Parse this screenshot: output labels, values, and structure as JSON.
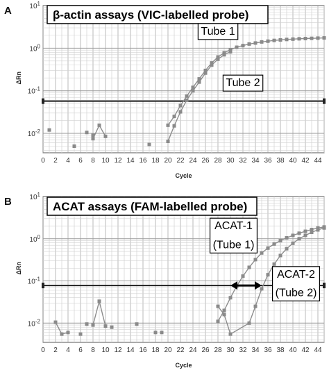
{
  "chart_data": [
    {
      "type": "scatter",
      "panel_label": "A",
      "title": "β-actin assays (VIC-labelled probe)",
      "xlabel": "Cycle",
      "ylabel": "ΔRn",
      "xlim": [
        0,
        45
      ],
      "ylim": [
        0.0035,
        10
      ],
      "yscale": "log",
      "xticks": [
        0,
        2,
        4,
        6,
        8,
        10,
        12,
        14,
        16,
        18,
        20,
        22,
        24,
        26,
        28,
        30,
        32,
        34,
        36,
        38,
        40,
        42,
        44
      ],
      "yticks": [
        {
          "value": 10,
          "label": "10^1"
        },
        {
          "value": 1,
          "label": "10^0"
        },
        {
          "value": 0.1,
          "label": "10^-1"
        },
        {
          "value": 0.01,
          "label": "10^-2"
        }
      ],
      "grid": true,
      "threshold": 0.057,
      "series": [
        {
          "name": "Tube 1",
          "points": [
            [
              20,
              0.0155
            ],
            [
              21,
              0.025
            ],
            [
              22,
              0.045
            ],
            [
              23,
              0.075
            ],
            [
              24,
              0.12
            ],
            [
              25,
              0.19
            ],
            [
              26,
              0.3
            ],
            [
              27,
              0.45
            ],
            [
              28,
              0.62
            ],
            [
              29,
              0.78
            ],
            [
              30,
              0.92
            ],
            [
              31,
              1.05
            ],
            [
              32,
              1.15
            ],
            [
              33,
              1.25
            ],
            [
              34,
              1.32
            ],
            [
              35,
              1.4
            ],
            [
              36,
              1.46
            ],
            [
              37,
              1.52
            ],
            [
              38,
              1.56
            ],
            [
              39,
              1.6
            ],
            [
              40,
              1.63
            ],
            [
              41,
              1.66
            ],
            [
              42,
              1.68
            ],
            [
              43,
              1.7
            ],
            [
              44,
              1.72
            ],
            [
              45,
              1.74
            ]
          ]
        },
        {
          "name": "Tube 2",
          "points": [
            [
              20,
              0.0065
            ],
            [
              21,
              0.015
            ],
            [
              22,
              0.032
            ],
            [
              23,
              0.06
            ],
            [
              24,
              0.1
            ],
            [
              25,
              0.16
            ],
            [
              26,
              0.26
            ],
            [
              27,
              0.4
            ],
            [
              28,
              0.55
            ],
            [
              29,
              0.7
            ],
            [
              30,
              0.82
            ]
          ]
        },
        {
          "name": "",
          "points": [
            [
              8,
              0.0075
            ],
            [
              9,
              0.0155
            ],
            [
              10,
              0.0085
            ]
          ]
        }
      ],
      "scatter_points": [
        [
          1,
          0.012
        ],
        [
          5,
          0.005
        ],
        [
          7,
          0.0105
        ],
        [
          8,
          0.009
        ],
        [
          17,
          0.0055
        ]
      ],
      "annotations": [
        {
          "text": "Tube 1",
          "x": 28,
          "y": 2.6
        },
        {
          "text": "Tube 2",
          "x": 32,
          "y": 0.16
        }
      ]
    },
    {
      "type": "scatter",
      "panel_label": "B",
      "title": "ACAT assays (FAM-labelled probe)",
      "xlabel": "Cycle",
      "ylabel": "ΔRn",
      "xlim": [
        0,
        45
      ],
      "ylim": [
        0.0035,
        10
      ],
      "yscale": "log",
      "xticks": [
        0,
        2,
        4,
        6,
        8,
        10,
        12,
        14,
        16,
        18,
        20,
        22,
        24,
        26,
        28,
        30,
        32,
        34,
        36,
        38,
        40,
        42,
        44
      ],
      "yticks": [
        {
          "value": 10,
          "label": "10^1"
        },
        {
          "value": 1,
          "label": "10^0"
        },
        {
          "value": 0.1,
          "label": "10^-1"
        },
        {
          "value": 0.01,
          "label": "10^-2"
        }
      ],
      "grid": true,
      "threshold": 0.078,
      "delta_arrow": {
        "x_start": 30,
        "x_end": 35,
        "y": 0.078
      },
      "series": [
        {
          "name": "ACAT-1",
          "points": [
            [
              28,
              0.011
            ],
            [
              29,
              0.02
            ],
            [
              30,
              0.04
            ],
            [
              31,
              0.075
            ],
            [
              32,
              0.13
            ],
            [
              33,
              0.21
            ],
            [
              34,
              0.32
            ],
            [
              35,
              0.46
            ],
            [
              36,
              0.6
            ],
            [
              37,
              0.75
            ],
            [
              38,
              0.9
            ],
            [
              39,
              1.05
            ],
            [
              40,
              1.2
            ],
            [
              41,
              1.35
            ],
            [
              42,
              1.5
            ],
            [
              43,
              1.65
            ],
            [
              44,
              1.8
            ],
            [
              45,
              1.9
            ]
          ]
        },
        {
          "name": "ACAT-2",
          "points": [
            [
              28,
              0.025
            ],
            [
              29,
              0.016
            ],
            [
              30,
              0.0055
            ],
            [
              33,
              0.01
            ],
            [
              34,
              0.025
            ],
            [
              35,
              0.065
            ],
            [
              36,
              0.14
            ],
            [
              37,
              0.25
            ],
            [
              38,
              0.4
            ],
            [
              39,
              0.58
            ],
            [
              40,
              0.78
            ],
            [
              41,
              1.0
            ],
            [
              42,
              1.2
            ],
            [
              43,
              1.42
            ],
            [
              44,
              1.62
            ],
            [
              45,
              1.8
            ]
          ]
        },
        {
          "name": "",
          "points": [
            [
              2,
              0.0105
            ],
            [
              3,
              0.0055
            ],
            [
              4,
              0.006
            ]
          ]
        },
        {
          "name": "",
          "points": [
            [
              8,
              0.009
            ],
            [
              9,
              0.033
            ],
            [
              10,
              0.0085
            ]
          ]
        }
      ],
      "scatter_points": [
        [
          6,
          0.0055
        ],
        [
          7,
          0.0095
        ],
        [
          11,
          0.008
        ],
        [
          15,
          0.0095
        ],
        [
          18,
          0.006
        ],
        [
          19,
          0.006
        ]
      ],
      "annotations": [
        {
          "text": "ACAT-1",
          "x": 30.5,
          "y": 2.1
        },
        {
          "text": "(Tube 1)",
          "x": 30.5,
          "y": 0.75
        },
        {
          "text": "ACAT-2",
          "x": 40.5,
          "y": 0.15
        },
        {
          "text": "(Tube 2)",
          "x": 40.5,
          "y": 0.055
        }
      ]
    }
  ]
}
